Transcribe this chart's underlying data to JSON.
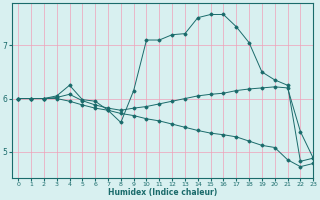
{
  "xlabel": "Humidex (Indice chaleur)",
  "ylabel": "",
  "xlim": [
    -0.5,
    23
  ],
  "ylim": [
    4.5,
    7.8
  ],
  "xticks": [
    0,
    1,
    2,
    3,
    4,
    5,
    6,
    7,
    8,
    9,
    10,
    11,
    12,
    13,
    14,
    15,
    16,
    17,
    18,
    19,
    20,
    21,
    22,
    23
  ],
  "yticks": [
    5,
    6,
    7
  ],
  "bg_color": "#d8f0f0",
  "line_color": "#1a6b6b",
  "grid_color": "#f0a0b8",
  "line1_x": [
    0,
    1,
    2,
    3,
    4,
    5,
    6,
    7,
    8,
    9,
    10,
    11,
    12,
    13,
    14,
    15,
    16,
    17,
    18,
    19,
    20,
    21,
    22,
    23
  ],
  "line1_y": [
    6.0,
    6.0,
    6.0,
    6.0,
    5.95,
    5.88,
    5.82,
    5.78,
    5.72,
    5.68,
    5.62,
    5.58,
    5.52,
    5.46,
    5.4,
    5.35,
    5.32,
    5.28,
    5.2,
    5.12,
    5.08,
    4.85,
    4.72,
    4.78
  ],
  "line2_x": [
    0,
    1,
    2,
    3,
    4,
    5,
    6,
    7,
    8,
    9,
    10,
    11,
    12,
    13,
    14,
    15,
    16,
    17,
    18,
    19,
    20,
    21,
    22,
    23
  ],
  "line2_y": [
    6.0,
    6.0,
    6.0,
    6.02,
    6.08,
    5.96,
    5.88,
    5.82,
    5.78,
    5.82,
    5.85,
    5.9,
    5.95,
    6.0,
    6.05,
    6.08,
    6.1,
    6.15,
    6.18,
    6.2,
    6.22,
    6.2,
    5.38,
    4.88
  ],
  "line3_x": [
    0,
    1,
    2,
    3,
    4,
    5,
    6,
    7,
    8,
    9,
    10,
    11,
    12,
    13,
    14,
    15,
    16,
    17,
    18,
    19,
    20,
    21,
    22,
    23
  ],
  "line3_y": [
    6.0,
    6.0,
    6.0,
    6.05,
    6.25,
    5.98,
    5.95,
    5.78,
    5.55,
    6.15,
    7.1,
    7.1,
    7.2,
    7.22,
    7.52,
    7.58,
    7.58,
    7.35,
    7.05,
    6.5,
    6.35,
    6.25,
    4.82,
    4.88
  ],
  "figsize": [
    3.2,
    2.0
  ],
  "dpi": 100
}
